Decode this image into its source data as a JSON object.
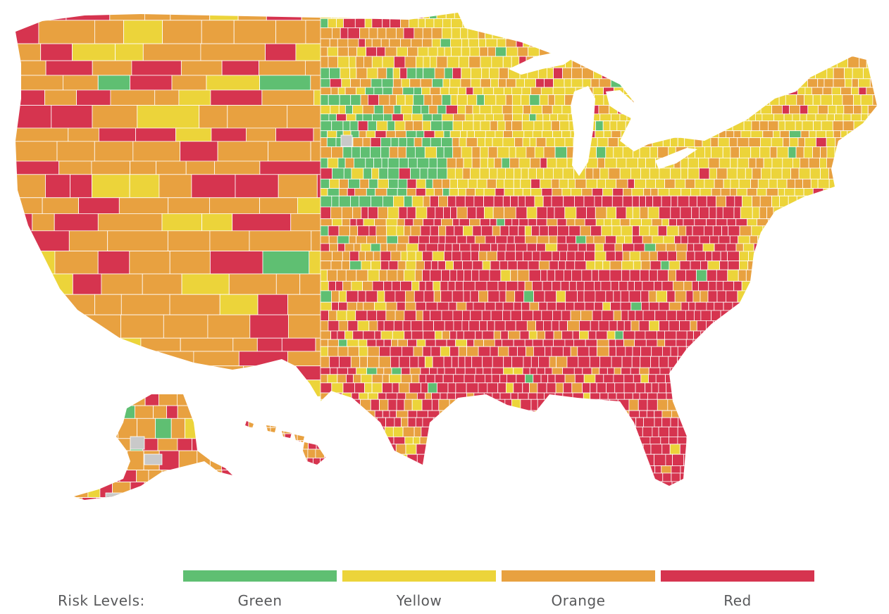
{
  "legend": {
    "title": "Risk Levels:",
    "levels": [
      {
        "label": "Green",
        "color": "#5fbf72"
      },
      {
        "label": "Yellow",
        "color": "#ecd43a"
      },
      {
        "label": "Orange",
        "color": "#e8a140"
      },
      {
        "label": "Red",
        "color": "#d6344f"
      }
    ]
  },
  "colors": {
    "green": "#5fbf72",
    "yellow": "#ecd43a",
    "orange": "#e8a140",
    "red": "#d6344f",
    "no_data": "#c9c9c9",
    "border": "#ffffff"
  }
}
